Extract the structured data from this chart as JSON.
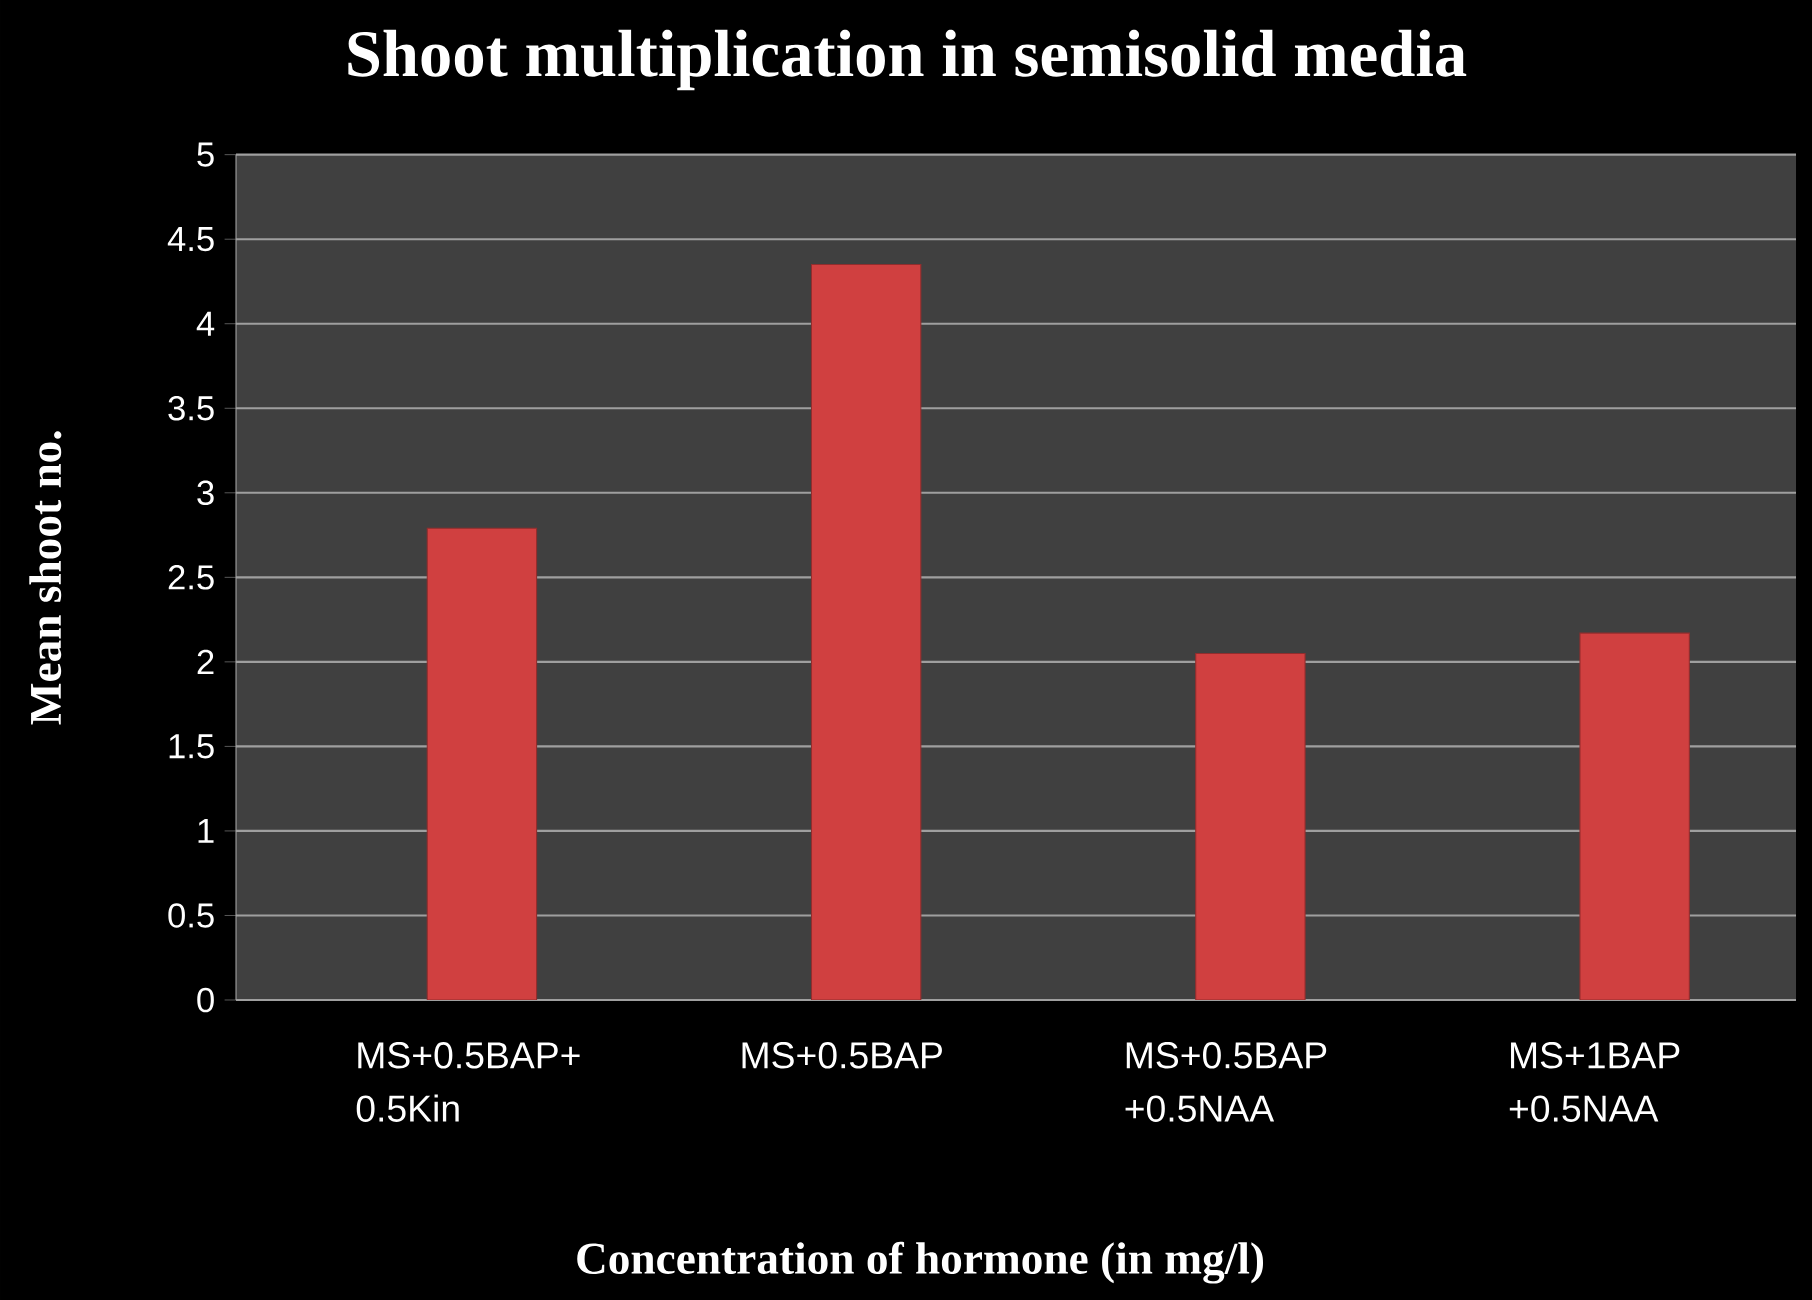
{
  "chart_data": {
    "type": "bar",
    "title": "Shoot multiplication in semisolid media",
    "xlabel": "Concentration of hormone (in mg/l)",
    "ylabel": "Mean shoot no.",
    "categories": [
      "MS+0.5BAP+ 0.5Kin",
      "MS+0.5BAP",
      "MS+0.5BAP +0.5NAA",
      "MS+1BAP +0.5NAA"
    ],
    "values": [
      2.79,
      4.35,
      2.05,
      2.17
    ],
    "color": "#d04040",
    "ylim": [
      0,
      5
    ],
    "yticks": [
      0,
      0.5,
      1,
      1.5,
      2,
      2.5,
      3,
      3.5,
      4,
      4.5,
      5
    ],
    "grid": "y"
  }
}
